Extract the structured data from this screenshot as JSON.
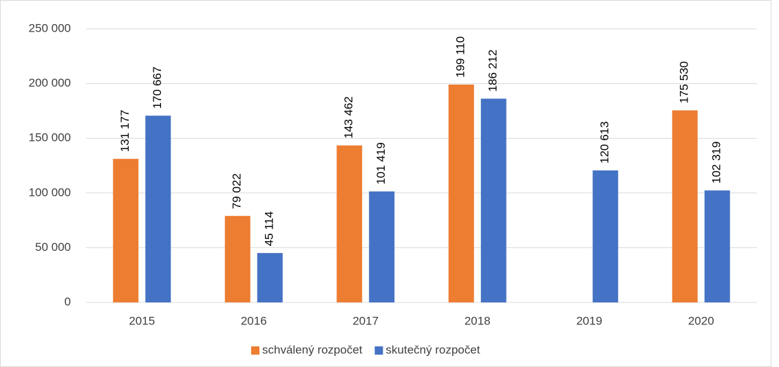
{
  "chart_data": {
    "type": "bar",
    "categories": [
      "2015",
      "2016",
      "2017",
      "2018",
      "2019",
      "2020"
    ],
    "series": [
      {
        "name": "schválený rozpočet",
        "color": "#ed7d31",
        "values": [
          131177,
          79022,
          143462,
          199110,
          null,
          175530
        ],
        "value_labels": [
          "131 177",
          "79 022",
          "143 462",
          "199 110",
          null,
          "175 530"
        ]
      },
      {
        "name": "skutečný rozpočet",
        "color": "#4472c4",
        "values": [
          170667,
          45114,
          101419,
          186212,
          120613,
          102319
        ],
        "value_labels": [
          "170 667",
          "45 114",
          "101 419",
          "186 212",
          "120 613",
          "102 319"
        ]
      }
    ],
    "ylim": [
      0,
      250000
    ],
    "yticks": [
      0,
      {
        "value": 50000,
        "label": "50 000"
      },
      {
        "value": 100000,
        "label": "100 000"
      },
      {
        "value": 150000,
        "label": "150 000"
      },
      {
        "value": 200000,
        "label": "200 000"
      },
      {
        "value": 250000,
        "label": "250 000"
      }
    ],
    "grid": true,
    "legend": "bottom"
  }
}
